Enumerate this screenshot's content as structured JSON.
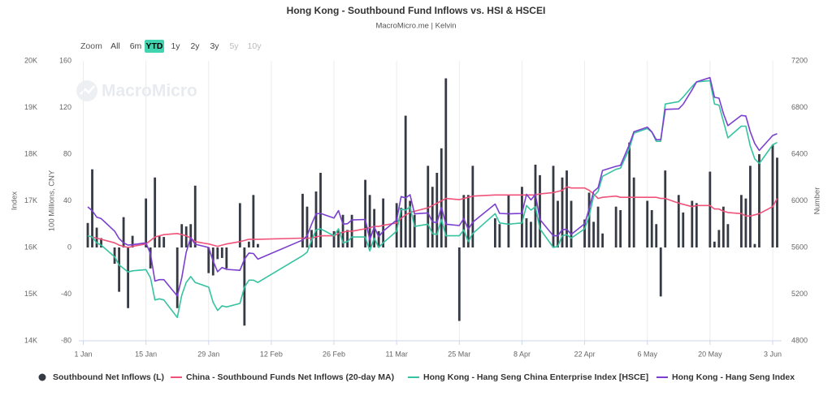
{
  "chart_data": {
    "type": "combo",
    "title": "Hong Kong - Southbound Fund Inflows vs. HSI & HSCEI",
    "subtitle": "MacroMicro.me | Kelvin",
    "watermark": "MacroMicro",
    "range_selector": {
      "label": "Zoom",
      "buttons": [
        {
          "label": "All",
          "active": false,
          "enabled": true
        },
        {
          "label": "6m",
          "active": false,
          "enabled": true
        },
        {
          "label": "YTD",
          "active": true,
          "enabled": true
        },
        {
          "label": "1y",
          "active": false,
          "enabled": true
        },
        {
          "label": "2y",
          "active": false,
          "enabled": true
        },
        {
          "label": "3y",
          "active": false,
          "enabled": true
        },
        {
          "label": "5y",
          "active": false,
          "enabled": false
        },
        {
          "label": "10y",
          "active": false,
          "enabled": false
        }
      ]
    },
    "x": [
      1,
      2,
      3,
      4,
      7,
      8,
      9,
      10,
      11,
      14,
      15,
      16,
      17,
      18,
      21,
      22,
      23,
      24,
      25,
      28,
      29,
      30,
      31,
      32,
      35,
      36,
      37,
      38,
      39,
      49,
      50,
      51,
      52,
      53,
      56,
      57,
      58,
      59,
      60,
      63,
      64,
      65,
      66,
      67,
      70,
      71,
      72,
      73,
      74,
      77,
      78,
      79,
      80,
      81,
      84,
      85,
      86,
      87,
      92,
      93,
      95,
      98,
      99,
      100,
      101,
      102,
      105,
      106,
      107,
      108,
      109,
      112,
      113,
      114,
      115,
      116,
      119,
      120,
      122,
      123,
      126,
      127,
      128,
      129,
      130,
      133,
      134,
      136,
      137,
      140,
      141,
      142,
      143,
      144,
      147,
      148,
      149,
      150,
      151,
      154,
      155
    ],
    "xlim": [
      -1,
      156
    ],
    "xticks": [
      {
        "value": 0,
        "label": "1 Jan"
      },
      {
        "value": 14,
        "label": "15 Jan"
      },
      {
        "value": 28,
        "label": "29 Jan"
      },
      {
        "value": 42,
        "label": "12 Feb"
      },
      {
        "value": 56,
        "label": "26 Feb"
      },
      {
        "value": 70,
        "label": "11 Mar"
      },
      {
        "value": 84,
        "label": "25 Mar"
      },
      {
        "value": 98,
        "label": "8 Apr"
      },
      {
        "value": 112,
        "label": "22 Apr"
      },
      {
        "value": 126,
        "label": "6 May"
      },
      {
        "value": 140,
        "label": "20 May"
      },
      {
        "value": 154,
        "label": "3 Jun"
      }
    ],
    "ylabel": "100 Millions, CNY",
    "ylim": [
      -80,
      160
    ],
    "yticks": [
      -80,
      -40,
      0,
      40,
      80,
      120,
      160
    ],
    "y2label": "Index",
    "y2lim": [
      14000,
      20000
    ],
    "y2ticks": [
      {
        "value": 14000,
        "label": "14K"
      },
      {
        "value": 15000,
        "label": "15K"
      },
      {
        "value": 16000,
        "label": "16K"
      },
      {
        "value": 17000,
        "label": "17K"
      },
      {
        "value": 18000,
        "label": "18K"
      },
      {
        "value": 19000,
        "label": "19K"
      },
      {
        "value": 20000,
        "label": "20K"
      }
    ],
    "y3label": "Number",
    "y3lim": [
      4800,
      7200
    ],
    "y3ticks": [
      4800,
      5200,
      5600,
      6000,
      6400,
      6800,
      7200
    ],
    "grid": "x",
    "legend": "bottom",
    "series": [
      {
        "name": "Southbound Net Inflows (L)",
        "type": "bar",
        "color": "#363a45",
        "values": [
          21,
          67,
          17,
          8,
          -14,
          -38,
          26,
          -52,
          10,
          42,
          -18,
          60,
          10,
          9,
          -52,
          20,
          18,
          20,
          53,
          -22,
          -24,
          -10,
          -9,
          -18,
          38,
          -67,
          5,
          45,
          3,
          46,
          35,
          15,
          48,
          64,
          14,
          15,
          28,
          15,
          28,
          58,
          45,
          33,
          14,
          42,
          38,
          34,
          113,
          40,
          28,
          70,
          52,
          64,
          85,
          145,
          -63,
          45,
          45,
          70,
          25,
          20,
          45,
          52,
          25,
          22,
          71,
          62,
          70,
          40,
          60,
          66,
          40,
          24,
          47,
          22,
          35,
          12,
          35,
          32,
          90,
          60,
          40,
          32,
          20,
          -42,
          66,
          45,
          30,
          40,
          38,
          65,
          5,
          15,
          35,
          20,
          45,
          42,
          70,
          3,
          80,
          88,
          77
        ]
      },
      {
        "name": "China - Southbound Funds Net Inflows (20-day MA)",
        "type": "line",
        "color": "#f0527a",
        "values": [
          10,
          9,
          8,
          7,
          4,
          2,
          1,
          0,
          1,
          3,
          6,
          9,
          10,
          11,
          12,
          11,
          10,
          8,
          5,
          3,
          2,
          1,
          2,
          3,
          5,
          6,
          7,
          7,
          7,
          8,
          8,
          8,
          9,
          10,
          10,
          12,
          13,
          14,
          14,
          16,
          17,
          18,
          18,
          19,
          21,
          25,
          28,
          30,
          31,
          34,
          36,
          38,
          40,
          42,
          41,
          42,
          43,
          44,
          45,
          45,
          45,
          45,
          45,
          45,
          45,
          46,
          47,
          48,
          49,
          52,
          51,
          51,
          49,
          46,
          42,
          43,
          44,
          43,
          43,
          43,
          43,
          43,
          43,
          42,
          42,
          38,
          37,
          35,
          36,
          36,
          33,
          33,
          31,
          30,
          29,
          27,
          27,
          28,
          29,
          35,
          42
        ]
      },
      {
        "name": "Hong Kong - Hang Seng China Enterprise Index [HSCE]",
        "type": "line",
        "axis": "y3",
        "color": "#35c3a0",
        "values": [
          5700,
          5690,
          5640,
          5620,
          5520,
          5450,
          5420,
          5390,
          5400,
          5410,
          5340,
          5150,
          5160,
          5150,
          5000,
          5190,
          5300,
          5350,
          5300,
          5260,
          5130,
          5060,
          5100,
          5090,
          5120,
          5260,
          5320,
          5320,
          5300,
          5530,
          5560,
          5660,
          5750,
          5760,
          5700,
          5760,
          5640,
          5650,
          5690,
          5690,
          5570,
          5680,
          5600,
          5640,
          5740,
          5930,
          5920,
          5950,
          5780,
          5800,
          5720,
          5710,
          5840,
          5700,
          5700,
          5750,
          5650,
          5720,
          5890,
          5810,
          5800,
          5810,
          5960,
          5920,
          5950,
          5760,
          5600,
          5610,
          5700,
          5710,
          5680,
          5760,
          5870,
          6040,
          6080,
          6210,
          6270,
          6280,
          6450,
          6580,
          6620,
          6590,
          6510,
          6510,
          6830,
          6850,
          6890,
          6980,
          7020,
          7030,
          6830,
          6820,
          6680,
          6540,
          6640,
          6640,
          6470,
          6360,
          6320,
          6480,
          6500
        ]
      },
      {
        "name": "Hong Kong - Hang Seng Index",
        "type": "line",
        "axis": "y2",
        "color": "#7b3fd0",
        "values": [
          16870,
          16790,
          16650,
          16620,
          16350,
          16190,
          16100,
          16050,
          16060,
          16100,
          15865,
          15280,
          15310,
          15310,
          14960,
          15350,
          15900,
          16210,
          16070,
          16000,
          15710,
          15480,
          15570,
          15530,
          15510,
          15750,
          15880,
          15870,
          15750,
          16160,
          16250,
          16500,
          16720,
          16730,
          16630,
          16790,
          16500,
          16510,
          16590,
          16600,
          16160,
          16440,
          16230,
          16350,
          16590,
          17090,
          17060,
          17130,
          16720,
          16740,
          16550,
          16530,
          16860,
          16500,
          16470,
          16620,
          16390,
          16540,
          16930,
          16730,
          16720,
          16730,
          17140,
          17020,
          17140,
          16600,
          16250,
          16250,
          16380,
          16390,
          16280,
          16510,
          16830,
          17200,
          17280,
          17650,
          17740,
          17760,
          18210,
          18480,
          18580,
          18480,
          18310,
          18310,
          18960,
          18970,
          19070,
          19380,
          19550,
          19640,
          19220,
          19200,
          18870,
          18610,
          18830,
          18820,
          18480,
          18230,
          18080,
          18400,
          18440
        ]
      }
    ]
  }
}
